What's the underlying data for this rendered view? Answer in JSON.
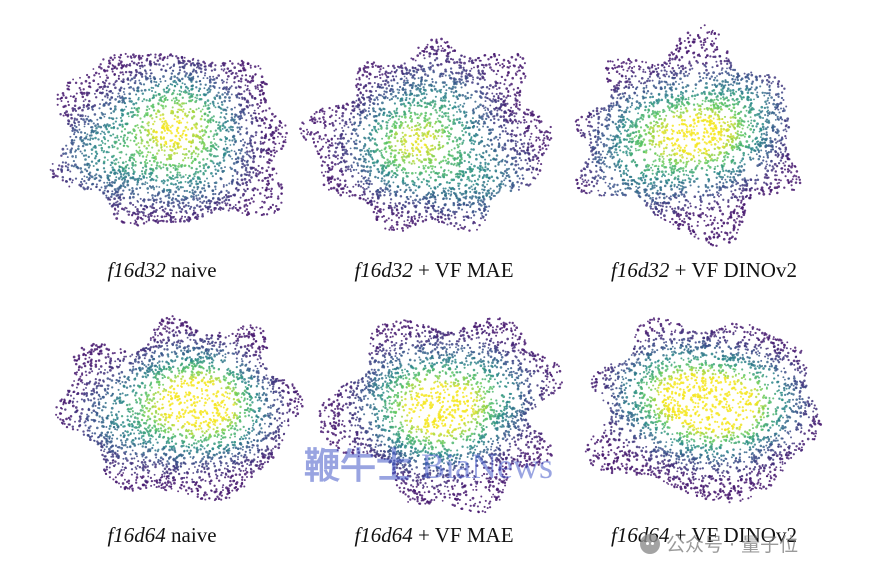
{
  "panels": [
    {
      "id": "f16d32-naive",
      "model": "f16d32",
      "suffix": " naive"
    },
    {
      "id": "f16d32-vf-mae",
      "model": "f16d32",
      "suffix": " + VF MAE"
    },
    {
      "id": "f16d32-vf-dinov2",
      "model": "f16d32",
      "suffix": " + VF DINOv2"
    },
    {
      "id": "f16d64-naive",
      "model": "f16d64",
      "suffix": " naive"
    },
    {
      "id": "f16d64-vf-mae",
      "model": "f16d64",
      "suffix": " + VF MAE"
    },
    {
      "id": "f16d64-vf-dinov2",
      "model": "f16d64",
      "suffix": " + VF DINOv2"
    }
  ],
  "watermarks": {
    "bianews_cn": "鞭牛士",
    "bianews_en": "BiaNews",
    "qbit": "公众号 · 量子位",
    "qbit_icon": "wechat-icon"
  },
  "colors": {
    "density_low": "#46186f",
    "density_mid": "#2a8a8a",
    "density_high": "#f5e61f",
    "watermark_blue": "#465ac8"
  }
}
